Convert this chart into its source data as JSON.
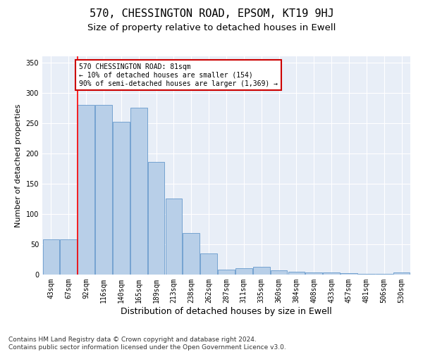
{
  "title": "570, CHESSINGTON ROAD, EPSOM, KT19 9HJ",
  "subtitle": "Size of property relative to detached houses in Ewell",
  "xlabel": "Distribution of detached houses by size in Ewell",
  "ylabel": "Number of detached properties",
  "categories": [
    "43sqm",
    "67sqm",
    "92sqm",
    "116sqm",
    "140sqm",
    "165sqm",
    "189sqm",
    "213sqm",
    "238sqm",
    "262sqm",
    "287sqm",
    "311sqm",
    "335sqm",
    "360sqm",
    "384sqm",
    "408sqm",
    "433sqm",
    "457sqm",
    "481sqm",
    "506sqm",
    "530sqm"
  ],
  "values": [
    58,
    58,
    280,
    280,
    252,
    275,
    186,
    126,
    68,
    35,
    8,
    10,
    13,
    7,
    5,
    3,
    3,
    2,
    1,
    1,
    4
  ],
  "bar_color": "#b8cfe8",
  "bar_edge_color": "#6699cc",
  "red_line_x": 1.5,
  "annotation_text": "570 CHESSINGTON ROAD: 81sqm\n← 10% of detached houses are smaller (154)\n90% of semi-detached houses are larger (1,369) →",
  "annotation_box_color": "#ffffff",
  "annotation_box_edge": "#cc0000",
  "ylim": [
    0,
    360
  ],
  "yticks": [
    0,
    50,
    100,
    150,
    200,
    250,
    300,
    350
  ],
  "footer": "Contains HM Land Registry data © Crown copyright and database right 2024.\nContains public sector information licensed under the Open Government Licence v3.0.",
  "bg_color": "#e8eef7",
  "title_fontsize": 11,
  "subtitle_fontsize": 9.5,
  "xlabel_fontsize": 9,
  "ylabel_fontsize": 8,
  "tick_fontsize": 7,
  "footer_fontsize": 6.5
}
